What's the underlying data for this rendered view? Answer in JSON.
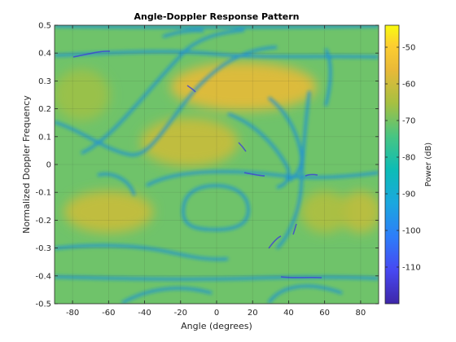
{
  "chart_data": {
    "type": "heatmap",
    "title": "Angle-Doppler Response Pattern",
    "xlabel": "Angle (degrees)",
    "ylabel": "Normalized Doppler Frequency",
    "colorbar_label": "Power (dB)",
    "colormap": "parula",
    "xlim": [
      -90,
      90
    ],
    "ylim": [
      -0.5,
      0.5
    ],
    "clim": [
      -120,
      -44
    ],
    "grid": true,
    "x_ticks": [
      -80,
      -60,
      -40,
      -20,
      0,
      20,
      40,
      60,
      80
    ],
    "x_tick_labels": [
      "-80",
      "-60",
      "-40",
      "-20",
      "0",
      "20",
      "40",
      "60",
      "80"
    ],
    "y_ticks": [
      0.5,
      0.4,
      0.3,
      0.2,
      0.1,
      0,
      -0.1,
      -0.2,
      -0.3,
      -0.4,
      -0.5
    ],
    "y_tick_labels": [
      "0.5",
      "0.4",
      "0.3",
      "0.2",
      "0.1",
      "0",
      "-0.1",
      "-0.2",
      "-0.3",
      "-0.4",
      "-0.5"
    ],
    "colorbar_ticks": [
      -50,
      -60,
      -70,
      -80,
      -90,
      -100,
      -110
    ],
    "colorbar_tick_labels": [
      "-50",
      "-60",
      "-70",
      "-80",
      "-90",
      "-100",
      "-110"
    ],
    "peaks": [
      {
        "angle": 15,
        "doppler": 0.28,
        "power_db": -58
      },
      {
        "angle": -15,
        "doppler": 0.08,
        "power_db": -62
      },
      {
        "angle": -60,
        "doppler": -0.17,
        "power_db": -62
      },
      {
        "angle": 80,
        "doppler": -0.17,
        "power_db": -63
      },
      {
        "angle": 60,
        "doppler": -0.17,
        "power_db": -65
      },
      {
        "angle": -75,
        "doppler": 0.25,
        "power_db": -67
      }
    ],
    "min_power_db": -120
  }
}
